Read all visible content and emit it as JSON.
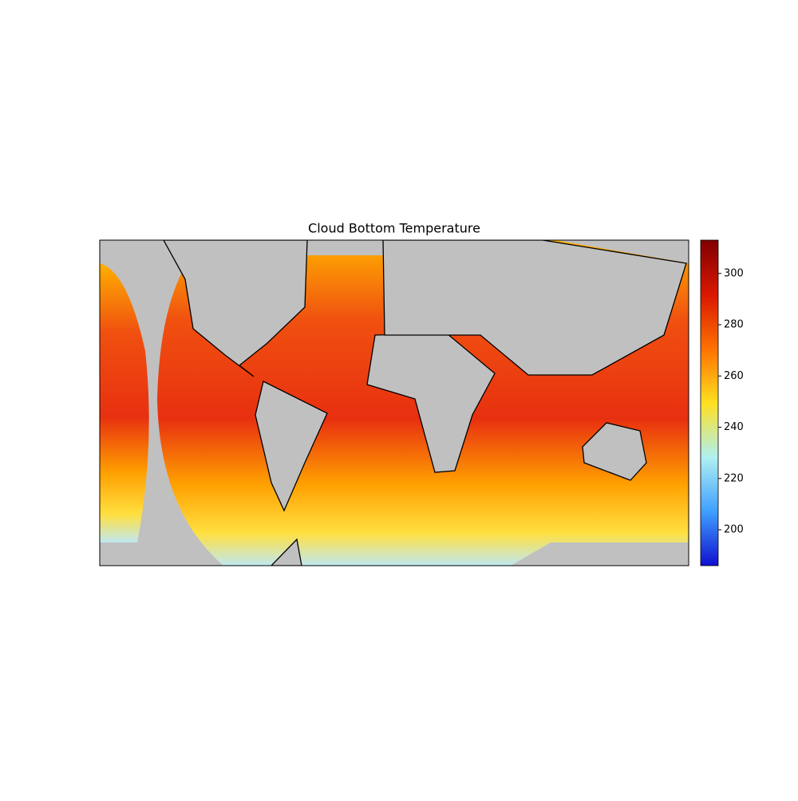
{
  "chart_data": {
    "type": "map",
    "title": "Cloud Bottom Temperature",
    "colorbar": {
      "lim": [
        186,
        313
      ],
      "ticks": [
        200,
        220,
        240,
        260,
        280,
        300
      ],
      "colormap": [
        "#1010d0",
        "#3fa0ff",
        "#b0f0f0",
        "#ffe020",
        "#ff7000",
        "#d81800",
        "#800000"
      ]
    }
  }
}
